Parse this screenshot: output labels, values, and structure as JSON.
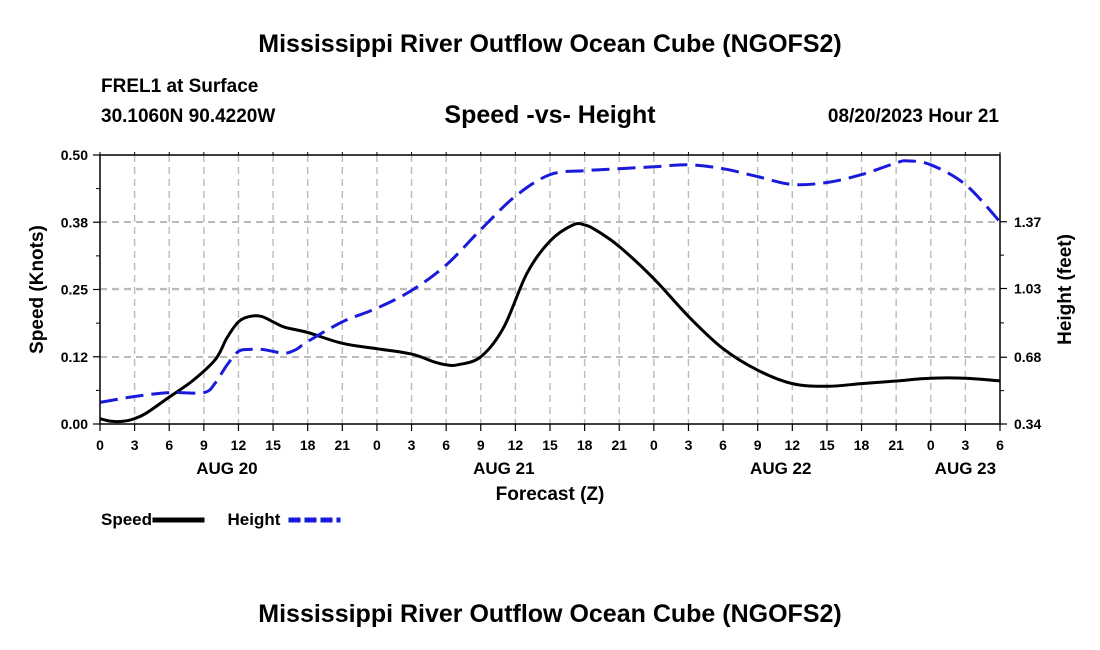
{
  "header": {
    "title": "Mississippi River Outflow Ocean Cube (NGOFS2)",
    "station": "FREL1 at Surface",
    "coords": "30.1060N  90.4220W",
    "plot_title": "Speed -vs- Height",
    "issued": "08/20/2023 Hour 21"
  },
  "footer": {
    "title": "Mississippi River Outflow Ocean Cube (NGOFS2)"
  },
  "colors": {
    "speed": "#000000",
    "height": "#1a1adb",
    "grid": "#bbbbbb"
  },
  "chart_data": {
    "type": "line",
    "title": "Speed -vs- Height",
    "xlabel": "Forecast (Z)",
    "ylabel": "Speed (Knots)",
    "y2label": "Height (feet)",
    "x_hours": [
      0,
      78
    ],
    "x_ticks": [
      {
        "h": 0,
        "label": "0"
      },
      {
        "h": 3,
        "label": "3"
      },
      {
        "h": 6,
        "label": "6"
      },
      {
        "h": 9,
        "label": "9"
      },
      {
        "h": 12,
        "label": "12"
      },
      {
        "h": 15,
        "label": "15"
      },
      {
        "h": 18,
        "label": "18"
      },
      {
        "h": 21,
        "label": "21"
      },
      {
        "h": 24,
        "label": "0"
      },
      {
        "h": 27,
        "label": "3"
      },
      {
        "h": 30,
        "label": "6"
      },
      {
        "h": 33,
        "label": "9"
      },
      {
        "h": 36,
        "label": "12"
      },
      {
        "h": 39,
        "label": "15"
      },
      {
        "h": 42,
        "label": "18"
      },
      {
        "h": 45,
        "label": "21"
      },
      {
        "h": 48,
        "label": "0"
      },
      {
        "h": 51,
        "label": "3"
      },
      {
        "h": 54,
        "label": "6"
      },
      {
        "h": 57,
        "label": "9"
      },
      {
        "h": 60,
        "label": "12"
      },
      {
        "h": 63,
        "label": "15"
      },
      {
        "h": 66,
        "label": "18"
      },
      {
        "h": 69,
        "label": "21"
      },
      {
        "h": 72,
        "label": "0"
      },
      {
        "h": 75,
        "label": "3"
      },
      {
        "h": 78,
        "label": "6"
      }
    ],
    "date_labels": [
      {
        "h": 11,
        "label": "AUG 20"
      },
      {
        "h": 35,
        "label": "AUG 21"
      },
      {
        "h": 59,
        "label": "AUG 22"
      },
      {
        "h": 75,
        "label": "AUG 23"
      }
    ],
    "y_left": {
      "range": [
        0,
        0.5
      ],
      "ticks": [
        {
          "v": 0.0,
          "label": "0.00"
        },
        {
          "v": 0.125,
          "label": "0.12"
        },
        {
          "v": 0.25,
          "label": "0.25"
        },
        {
          "v": 0.375,
          "label": "0.38"
        },
        {
          "v": 0.5,
          "label": "0.50"
        }
      ]
    },
    "y_right": {
      "range": [
        0.34,
        1.71
      ],
      "ticks": [
        {
          "v": 0.34,
          "label": "0.34"
        },
        {
          "v": 0.68,
          "label": "0.68"
        },
        {
          "v": 1.03,
          "label": "1.03"
        },
        {
          "v": 1.37,
          "label": "1.37"
        }
      ]
    },
    "series": [
      {
        "name": "Speed",
        "axis": "left",
        "style": "solid",
        "x": [
          0,
          1,
          2,
          3,
          4,
          6,
          8,
          10,
          11,
          12,
          13,
          14,
          15,
          16,
          18,
          21,
          24,
          27,
          29,
          30,
          31,
          33,
          35,
          37,
          39,
          41,
          42,
          43,
          45,
          48,
          51,
          54,
          57,
          60,
          63,
          66,
          69,
          72,
          75,
          78
        ],
        "values": [
          0.01,
          0.005,
          0.005,
          0.01,
          0.02,
          0.05,
          0.08,
          0.12,
          0.16,
          0.19,
          0.2,
          0.2,
          0.19,
          0.18,
          0.17,
          0.15,
          0.14,
          0.13,
          0.115,
          0.11,
          0.11,
          0.125,
          0.18,
          0.28,
          0.34,
          0.37,
          0.37,
          0.36,
          0.33,
          0.27,
          0.2,
          0.14,
          0.1,
          0.075,
          0.07,
          0.075,
          0.08,
          0.085,
          0.085,
          0.08
        ]
      },
      {
        "name": "Height",
        "axis": "right",
        "style": "dashed",
        "x": [
          0,
          3,
          6,
          9,
          10,
          11,
          12,
          13,
          14,
          15,
          16,
          17,
          18,
          21,
          24,
          27,
          30,
          33,
          36,
          39,
          42,
          45,
          48,
          51,
          54,
          57,
          60,
          63,
          66,
          69,
          70,
          72,
          75,
          78
        ],
        "values": [
          0.45,
          0.48,
          0.5,
          0.5,
          0.55,
          0.64,
          0.71,
          0.72,
          0.72,
          0.71,
          0.7,
          0.72,
          0.76,
          0.86,
          0.93,
          1.02,
          1.15,
          1.33,
          1.5,
          1.61,
          1.63,
          1.64,
          1.65,
          1.66,
          1.64,
          1.6,
          1.56,
          1.57,
          1.61,
          1.67,
          1.68,
          1.66,
          1.56,
          1.37
        ]
      }
    ],
    "legend": [
      {
        "name": "Speed",
        "style": "solid"
      },
      {
        "name": "Height",
        "style": "dashed"
      }
    ],
    "legend_position": "bottom-left",
    "grid": true
  }
}
